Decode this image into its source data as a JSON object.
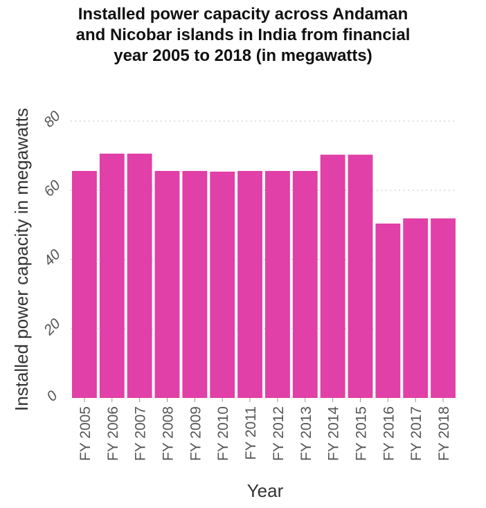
{
  "chart_data": {
    "type": "bar",
    "title_lines": [
      "Installed power capacity across Andaman",
      "and Nicobar islands in India from financial",
      "year 2005 to 2018 (in megawatts)"
    ],
    "xlabel": "Year",
    "ylabel": "Installed power capacity in megawatts",
    "categories": [
      "FY 2005",
      "FY 2006",
      "FY 2007",
      "FY 2008",
      "FY 2009",
      "FY 2010",
      "FY 2011",
      "FY 2012",
      "FY 2013",
      "FY 2014",
      "FY 2015",
      "FY 2016",
      "FY 2017",
      "FY 2018"
    ],
    "values": [
      65.6,
      70.6,
      70.6,
      65.6,
      65.6,
      65.4,
      65.6,
      65.6,
      65.6,
      70.3,
      70.3,
      50.4,
      51.9,
      51.9
    ],
    "ylim": [
      0,
      80
    ],
    "yticks": [
      "0",
      "20",
      "40",
      "60",
      "80"
    ],
    "grid": "dotted horizontal",
    "bar_color": "#e040a7"
  }
}
